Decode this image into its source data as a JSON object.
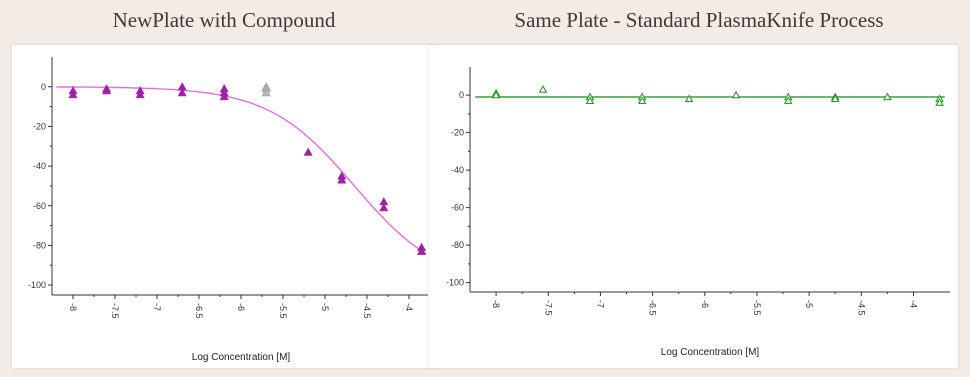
{
  "chart_data": [
    {
      "type": "scatter",
      "title": "NewPlate with Compound",
      "xlabel": "Log Concentration [M]",
      "ylabel": "",
      "xlim": [
        -8.25,
        -3.75
      ],
      "ylim": [
        -105,
        15
      ],
      "x_ticks": [
        -8,
        -7.5,
        -7,
        -6.5,
        -6,
        -5.5,
        -5,
        -4.5,
        -4
      ],
      "x_tick_labels": [
        "-8",
        "-7.5",
        "-7",
        "-6.5",
        "-6",
        "-5.5",
        "-5",
        "-4.5",
        "-4"
      ],
      "y_ticks": [
        0,
        -20,
        -40,
        -60,
        -80,
        -100
      ],
      "y_tick_labels": [
        "0",
        "-20",
        "-40",
        "-60",
        "-80",
        "-100"
      ],
      "grid": false,
      "marker_color": "#a020a8",
      "outlier_color": "#b8b8b8",
      "curve_color": "#e070e0",
      "series": [
        {
          "points": [
            {
              "x": -8.0,
              "y": -2
            },
            {
              "x": -8.0,
              "y": -4
            },
            {
              "x": -7.6,
              "y": -1
            },
            {
              "x": -7.6,
              "y": -2
            },
            {
              "x": -7.2,
              "y": -2
            },
            {
              "x": -7.2,
              "y": -4
            },
            {
              "x": -6.7,
              "y": 0
            },
            {
              "x": -6.7,
              "y": -3
            },
            {
              "x": -6.2,
              "y": -1
            },
            {
              "x": -6.2,
              "y": -3
            },
            {
              "x": -6.2,
              "y": -5
            },
            {
              "x": -5.2,
              "y": -33
            },
            {
              "x": -4.8,
              "y": -45
            },
            {
              "x": -4.8,
              "y": -47
            },
            {
              "x": -4.3,
              "y": -58
            },
            {
              "x": -4.3,
              "y": -61
            },
            {
              "x": -3.85,
              "y": -81
            },
            {
              "x": -3.85,
              "y": -83
            }
          ],
          "outliers": [
            {
              "x": -5.7,
              "y": 0
            },
            {
              "x": -5.7,
              "y": -1
            },
            {
              "x": -5.7,
              "y": -3
            }
          ],
          "fit": {
            "model": "4PL",
            "top": 0,
            "bottom": -100,
            "log_ic50": -4.65,
            "hill": 0.85
          }
        }
      ]
    },
    {
      "type": "scatter",
      "title": "Same Plate - Standard PlasmaKnife Process",
      "xlabel": "Log Concentration [M]",
      "ylabel": "",
      "xlim": [
        -8.25,
        -3.65
      ],
      "ylim": [
        -105,
        15
      ],
      "x_ticks": [
        -8,
        -7.5,
        -7,
        -6.5,
        -6,
        -5.5,
        -5,
        -4.5,
        -4
      ],
      "x_tick_labels": [
        "-8",
        "-7.5",
        "-7",
        "-6.5",
        "-6",
        "-5.5",
        "-5",
        "-4.5",
        "-4"
      ],
      "y_ticks": [
        0,
        -20,
        -40,
        -60,
        -80,
        -100
      ],
      "y_tick_labels": [
        "0",
        "-20",
        "-40",
        "-60",
        "-80",
        "-100"
      ],
      "grid": false,
      "marker_color": "#2e9a2e",
      "curve_color": "#3aa03a",
      "series": [
        {
          "points": [
            {
              "x": -8.0,
              "y": 1
            },
            {
              "x": -8.0,
              "y": 0
            },
            {
              "x": -7.55,
              "y": 3
            },
            {
              "x": -7.1,
              "y": -1
            },
            {
              "x": -7.1,
              "y": -3
            },
            {
              "x": -6.6,
              "y": -1
            },
            {
              "x": -6.6,
              "y": -3
            },
            {
              "x": -6.15,
              "y": -2
            },
            {
              "x": -5.7,
              "y": 0
            },
            {
              "x": -5.2,
              "y": -1
            },
            {
              "x": -5.2,
              "y": -3
            },
            {
              "x": -4.75,
              "y": -1
            },
            {
              "x": -4.75,
              "y": -2
            },
            {
              "x": -4.25,
              "y": -1
            },
            {
              "x": -3.75,
              "y": -2
            },
            {
              "x": -3.75,
              "y": -4
            }
          ],
          "fit": {
            "model": "constant",
            "y": -1
          }
        }
      ]
    }
  ]
}
